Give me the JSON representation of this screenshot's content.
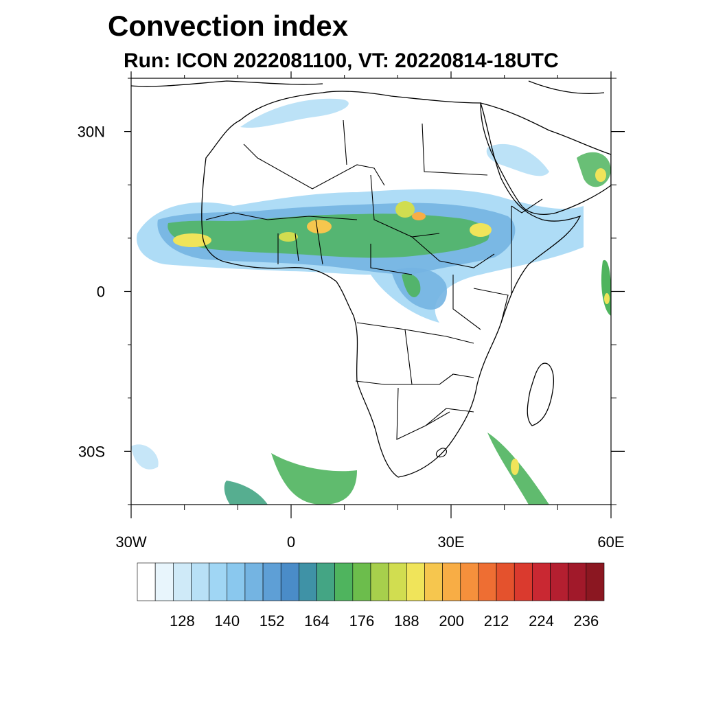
{
  "title": "Convection index",
  "subtitle": "Run: ICON 2022081100,  VT: 20220814-18UTC",
  "map": {
    "extent": {
      "lon": [
        -30,
        60
      ],
      "lat": [
        -40,
        40
      ]
    },
    "lat_ticks": [
      {
        "value": 30,
        "label": "30N"
      },
      {
        "value": 0,
        "label": "0"
      },
      {
        "value": -30,
        "label": "30S"
      }
    ],
    "lon_ticks": [
      {
        "value": -30,
        "label": "30W"
      },
      {
        "value": 0,
        "label": "0"
      },
      {
        "value": 30,
        "label": "30E"
      },
      {
        "value": 60,
        "label": "60E"
      }
    ],
    "minor_lat_ticks": [
      40,
      20,
      10,
      -10,
      -20,
      -40
    ],
    "minor_lon_ticks": [
      -20,
      -10,
      10,
      20,
      40,
      50
    ]
  },
  "colorbar": {
    "colors": [
      "#ffffff",
      "#e8f5fc",
      "#cfeaf8",
      "#b8e0f6",
      "#a0d6f4",
      "#8ac8ee",
      "#74b4e2",
      "#5e9fd6",
      "#4a8cc8",
      "#3f92a6",
      "#44a584",
      "#4fb45e",
      "#6cbd4c",
      "#a7cf4c",
      "#d1dd50",
      "#f0e45a",
      "#f6c64e",
      "#f8ad45",
      "#f5903c",
      "#ee6e33",
      "#e4522d",
      "#da3a2e",
      "#c92832",
      "#b41f30",
      "#a1192a",
      "#8b1721"
    ],
    "labels": [
      "128",
      "140",
      "152",
      "164",
      "176",
      "188",
      "200",
      "212",
      "224",
      "236"
    ]
  }
}
